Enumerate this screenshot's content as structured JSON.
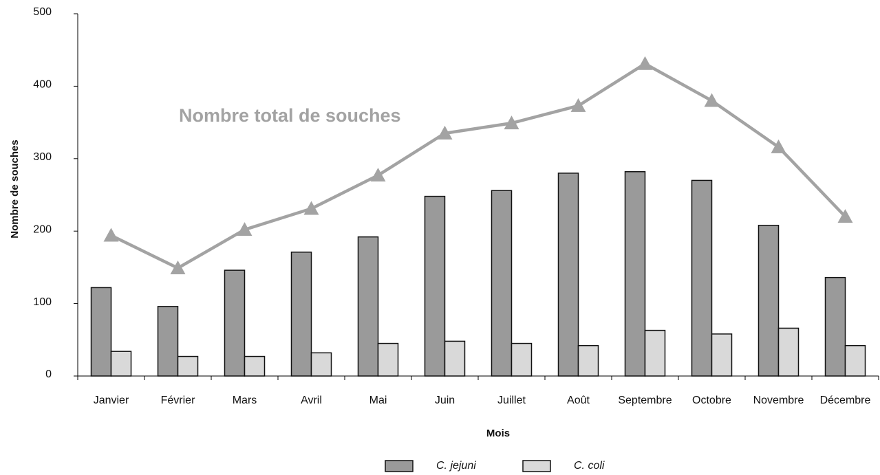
{
  "chart_data": {
    "type": "bar",
    "xlabel": "Mois",
    "ylabel": "Nombre de souches",
    "categories": [
      "Janvier",
      "Février",
      "Mars",
      "Avril",
      "Mai",
      "Juin",
      "Juillet",
      "Août",
      "Septembre",
      "Octobre",
      "Novembre",
      "Décembre"
    ],
    "series": [
      {
        "name": "C. jejuni",
        "type": "bar",
        "color": "#9a9a9a",
        "values": [
          122,
          96,
          146,
          171,
          192,
          248,
          256,
          280,
          282,
          270,
          208,
          136
        ]
      },
      {
        "name": "C. coli",
        "type": "bar",
        "color": "#d9d9d9",
        "values": [
          34,
          27,
          27,
          32,
          45,
          48,
          45,
          42,
          63,
          58,
          66,
          42
        ]
      },
      {
        "name": "Nombre total de souches",
        "type": "line",
        "color": "#a3a3a3",
        "values": [
          194,
          149,
          202,
          231,
          277,
          335,
          349,
          373,
          431,
          380,
          316,
          220
        ]
      }
    ],
    "ylim": [
      0,
      500
    ],
    "yticks": [
      0,
      100,
      200,
      300,
      400,
      500
    ],
    "grid": false,
    "legend": "bottom"
  }
}
